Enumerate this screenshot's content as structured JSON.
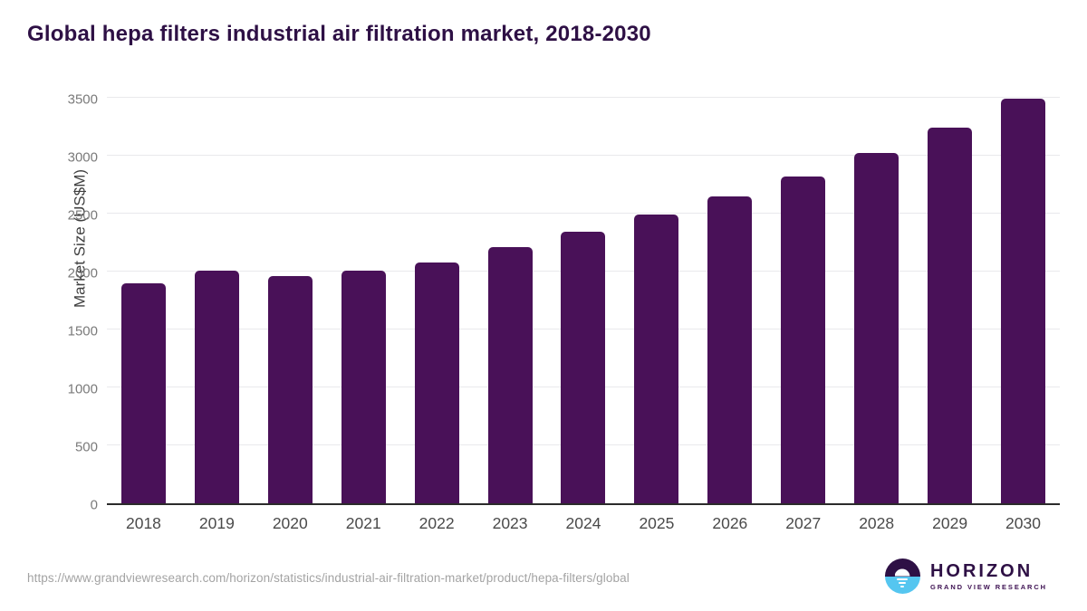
{
  "title": "Global hepa filters industrial air filtration market, 2018-2030",
  "chart_data": {
    "type": "bar",
    "title": "Global hepa filters industrial air filtration market, 2018-2030",
    "categories": [
      "2018",
      "2019",
      "2020",
      "2021",
      "2022",
      "2023",
      "2024",
      "2025",
      "2026",
      "2027",
      "2028",
      "2029",
      "2030"
    ],
    "values": [
      1900,
      2010,
      1960,
      2010,
      2080,
      2210,
      2340,
      2490,
      2650,
      2820,
      3020,
      3240,
      3490
    ],
    "xlabel": "",
    "ylabel": "Market Size (US$M)",
    "ylim": [
      0,
      3500
    ],
    "yticks": [
      0,
      500,
      1000,
      1500,
      2000,
      2500,
      3000,
      3500
    ],
    "grid": true,
    "legend": "none",
    "bar_color": "#491158"
  },
  "colors": {
    "title_text": "#2e1045",
    "bar": "#491158",
    "gridline": "#e9e9ec",
    "axis_line": "#2b2b2b",
    "tick_text": "#7a7a7a",
    "category_text": "#4a4a4a",
    "url_text": "#a3a3a3",
    "logo_purple": "#2e1045",
    "logo_blue": "#55c6f0"
  },
  "footer": {
    "source_url": "https://www.grandviewresearch.com/horizon/statistics/industrial-air-filtration-market/product/hepa-filters/global",
    "logo_name": "HORIZON",
    "logo_subtext": "GRAND VIEW RESEARCH"
  }
}
